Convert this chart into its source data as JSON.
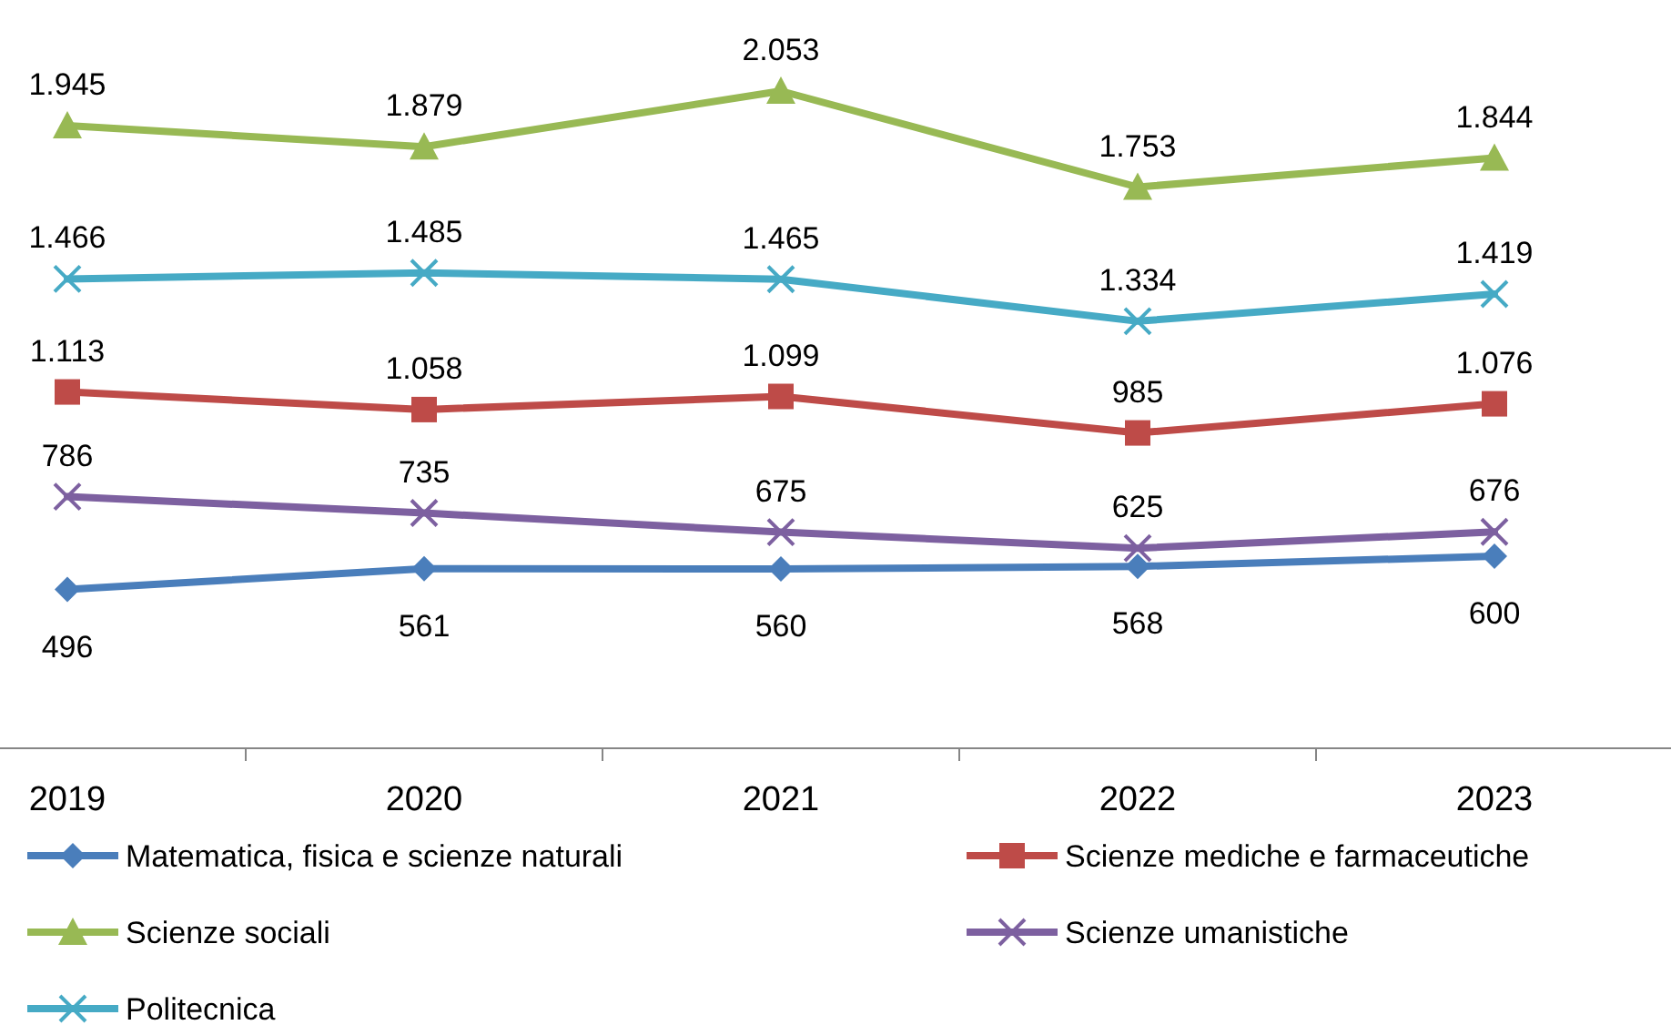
{
  "chart_data": {
    "type": "line",
    "categories": [
      "2019",
      "2020",
      "2021",
      "2022",
      "2023"
    ],
    "legend": "bottom",
    "series": [
      {
        "name": "Matematica, fisica e scienze naturali",
        "color": "#4a7ebb",
        "marker": "diamond",
        "values": [
          496,
          561,
          560,
          568,
          600
        ],
        "value_labels": [
          "496",
          "561",
          "560",
          "568",
          "600"
        ]
      },
      {
        "name": "Scienze mediche e farmaceutiche",
        "color": "#be4b48",
        "marker": "square",
        "values": [
          1113,
          1058,
          1099,
          985,
          1076
        ],
        "value_labels": [
          "1.113",
          "1.058",
          "1.099",
          "985",
          "1.076"
        ]
      },
      {
        "name": "Scienze sociali",
        "color": "#98b954",
        "marker": "triangle",
        "values": [
          1945,
          1879,
          2053,
          1753,
          1844
        ],
        "value_labels": [
          "1.945",
          "1.879",
          "2.053",
          "1.753",
          "1.844"
        ]
      },
      {
        "name": "Scienze umanistiche",
        "color": "#7d60a0",
        "marker": "cross",
        "values": [
          786,
          735,
          675,
          625,
          676
        ],
        "value_labels": [
          "786",
          "735",
          "675",
          "625",
          "676"
        ]
      },
      {
        "name": "Politecnica",
        "color": "#46aac5",
        "marker": "cross",
        "values": [
          1466,
          1485,
          1465,
          1334,
          1419
        ],
        "value_labels": [
          "1.466",
          "1.485",
          "1.465",
          "1.334",
          "1.419"
        ]
      }
    ]
  }
}
